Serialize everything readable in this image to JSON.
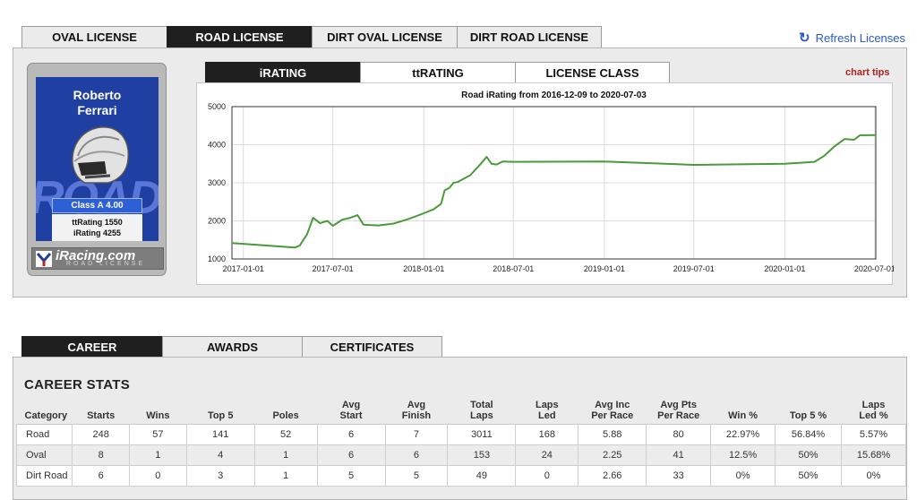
{
  "license_tabs": [
    {
      "label": "OVAL LICENSE",
      "active": false
    },
    {
      "label": "ROAD LICENSE",
      "active": true
    },
    {
      "label": "DIRT OVAL LICENSE",
      "active": false
    },
    {
      "label": "DIRT ROAD LICENSE",
      "active": false
    }
  ],
  "refresh": {
    "icon": "refresh-icon",
    "label": "Refresh Licenses"
  },
  "card": {
    "first_name": "Roberto",
    "last_name": "Ferrari",
    "watermark": "ROAD",
    "class_label": "Class A 4.00",
    "ttrating": "ttRating 1550",
    "irating": "iRating 4255",
    "logo": "iRacing.com",
    "logo_sub": "ROAD LICENSE"
  },
  "rating_tabs": [
    {
      "label": "iRATING",
      "active": true
    },
    {
      "label": "ttRATING",
      "active": false
    },
    {
      "label": "LICENSE CLASS",
      "active": false
    }
  ],
  "chart_tips": "chart tips",
  "chart_data": {
    "type": "line",
    "title": "Road iRating from 2016-12-09 to 2020-07-03",
    "xlabel": "",
    "ylabel": "",
    "xlim": [
      "2016-12-09",
      "2020-07-03"
    ],
    "ylim": [
      1000,
      5000
    ],
    "x_ticks": [
      "2017-01-01",
      "2017-07-01",
      "2018-01-01",
      "2018-07-01",
      "2019-01-01",
      "2019-07-01",
      "2020-01-01",
      "2020-07-01"
    ],
    "y_ticks": [
      1000,
      2000,
      3000,
      4000,
      5000
    ],
    "grid": true,
    "color": "#4a9a3a",
    "series": [
      {
        "x": [
          "2016-12-09",
          "2017-04-15",
          "2017-04-25",
          "2017-05-10",
          "2017-05-22",
          "2017-06-05",
          "2017-06-20",
          "2017-07-01",
          "2017-07-20",
          "2017-08-05",
          "2017-08-20",
          "2017-09-01",
          "2017-10-01",
          "2017-11-01",
          "2017-12-01",
          "2018-01-01",
          "2018-01-20",
          "2018-02-05",
          "2018-02-12",
          "2018-02-22",
          "2018-03-02",
          "2018-03-10",
          "2018-04-05",
          "2018-04-25",
          "2018-05-08",
          "2018-05-18",
          "2018-05-28",
          "2018-06-10",
          "2018-07-01",
          "2019-01-01",
          "2019-07-01",
          "2020-01-01",
          "2020-03-01",
          "2020-03-20",
          "2020-04-10",
          "2020-05-01",
          "2020-05-20",
          "2020-06-01",
          "2020-06-15",
          "2020-07-03"
        ],
        "y": [
          1420,
          1300,
          1350,
          1650,
          2080,
          1940,
          2000,
          1870,
          2030,
          2080,
          2150,
          1900,
          1880,
          1930,
          2050,
          2200,
          2300,
          2450,
          2800,
          2870,
          3000,
          3020,
          3200,
          3480,
          3680,
          3500,
          3480,
          3560,
          3550,
          3560,
          3470,
          3500,
          3550,
          3700,
          3950,
          4150,
          4130,
          4250,
          4250,
          4255
        ]
      }
    ]
  },
  "section_tabs": [
    {
      "label": "CAREER",
      "active": true
    },
    {
      "label": "AWARDS",
      "active": false
    },
    {
      "label": "CERTIFICATES",
      "active": false
    }
  ],
  "career": {
    "title": "CAREER STATS",
    "headers": [
      [
        "Category",
        ""
      ],
      [
        "Starts",
        ""
      ],
      [
        "Wins",
        ""
      ],
      [
        "Top 5",
        ""
      ],
      [
        "Poles",
        ""
      ],
      [
        "Avg",
        "Start"
      ],
      [
        "Avg",
        "Finish"
      ],
      [
        "Total",
        "Laps"
      ],
      [
        "Laps",
        "Led"
      ],
      [
        "Avg Inc",
        "Per Race"
      ],
      [
        "Avg Pts",
        "Per Race"
      ],
      [
        "Win %",
        ""
      ],
      [
        "Top 5 %",
        ""
      ],
      [
        "Laps",
        "Led %"
      ]
    ],
    "rows": [
      [
        "Road",
        "248",
        "57",
        "141",
        "52",
        "6",
        "7",
        "3011",
        "168",
        "5.88",
        "80",
        "22.97%",
        "56.84%",
        "5.57%"
      ],
      [
        "Oval",
        "8",
        "1",
        "4",
        "1",
        "6",
        "6",
        "153",
        "24",
        "2.25",
        "41",
        "12.5%",
        "50%",
        "15.68%"
      ],
      [
        "Dirt Road",
        "6",
        "0",
        "3",
        "1",
        "5",
        "5",
        "49",
        "0",
        "2.66",
        "33",
        "0%",
        "50%",
        "0%"
      ]
    ]
  }
}
